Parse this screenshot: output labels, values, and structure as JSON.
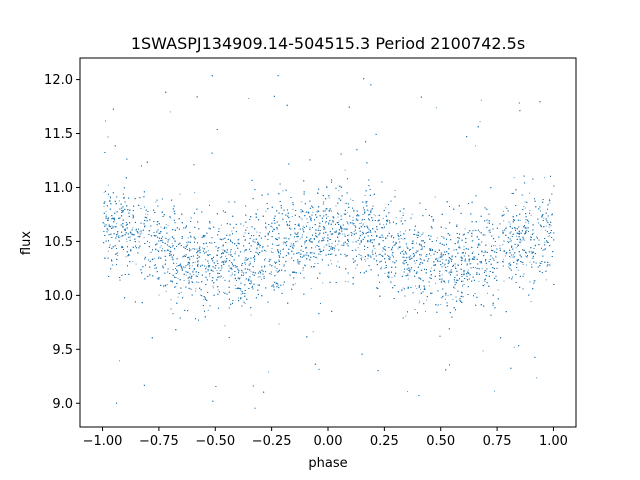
{
  "chart_data": {
    "type": "scatter",
    "title": "1SWASPJ134909.14-504515.3 Period 2100742.5s",
    "xlabel": "phase",
    "ylabel": "flux",
    "xlim": [
      -1.1,
      1.1
    ],
    "ylim": [
      8.78,
      12.2
    ],
    "xticks": [
      -1.0,
      -0.75,
      -0.5,
      -0.25,
      0.0,
      0.25,
      0.5,
      0.75,
      1.0
    ],
    "xtick_labels": [
      "−1.00",
      "−0.75",
      "−0.50",
      "−0.25",
      "0.00",
      "0.25",
      "0.50",
      "0.75",
      "1.00"
    ],
    "yticks": [
      9.0,
      9.5,
      10.0,
      10.5,
      11.0,
      11.5,
      12.0
    ],
    "ytick_labels": [
      "9.0",
      "9.5",
      "10.0",
      "10.5",
      "11.0",
      "11.5",
      "12.0"
    ],
    "grid": false,
    "legend": "none",
    "series": [
      {
        "color": "#1f77b4",
        "marker_size": 1,
        "approx_points": 9000,
        "x_range": [
          -1.0,
          1.0
        ],
        "period_in_phase": 1.0,
        "trend_x": [
          -1.0,
          -0.9,
          -0.8,
          -0.7,
          -0.6,
          -0.5,
          -0.4,
          -0.3,
          -0.2,
          -0.1,
          0.0
        ],
        "trend_y": [
          10.62,
          10.62,
          10.55,
          10.4,
          10.32,
          10.28,
          10.3,
          10.38,
          10.45,
          10.55,
          10.62
        ],
        "spread": 0.35,
        "outlier_range": [
          8.95,
          12.05
        ]
      }
    ]
  }
}
